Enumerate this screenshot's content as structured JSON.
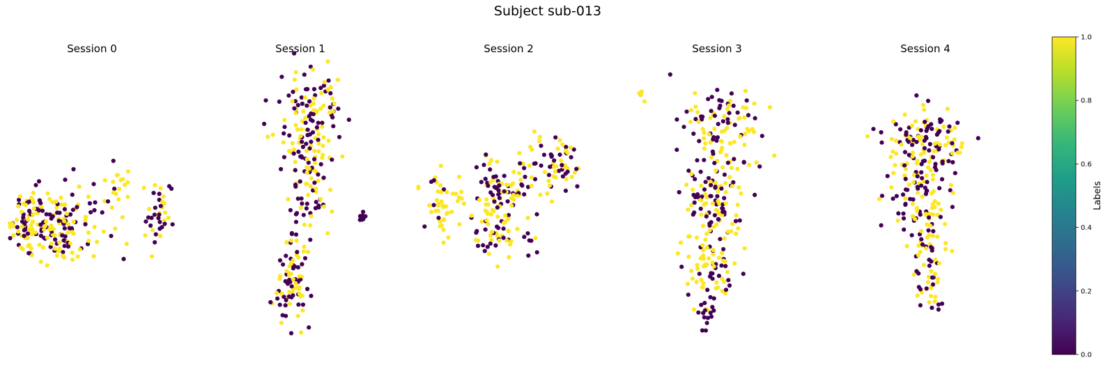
{
  "figure": {
    "title": "Subject sub-013"
  },
  "chart_data": {
    "type": "scatter",
    "colormap": "viridis",
    "marker_colors": {
      "label_0": "#440154",
      "label_1": "#fde725"
    },
    "panels": [
      {
        "title": "Session 0",
        "xlim": [
          0,
          10
        ],
        "ylim": [
          0,
          10
        ],
        "clusters": [
          {
            "cx": 3.0,
            "cy": 4.3,
            "rx": 2.9,
            "ry": 1.2,
            "n": 170,
            "label1": 0.55
          },
          {
            "cx": 1.5,
            "cy": 4.2,
            "rx": 1.3,
            "ry": 0.9,
            "n": 40,
            "label1": 0.5
          },
          {
            "cx": 6.6,
            "cy": 5.6,
            "rx": 0.9,
            "ry": 0.6,
            "n": 18,
            "label1": 0.85
          },
          {
            "cx": 8.9,
            "cy": 4.6,
            "rx": 0.8,
            "ry": 0.9,
            "n": 38,
            "label1": 0.55
          }
        ]
      },
      {
        "title": "Session 1",
        "xlim": [
          0,
          10
        ],
        "ylim": [
          0,
          10
        ],
        "clusters": [
          {
            "cx": 5.4,
            "cy": 7.6,
            "rx": 1.7,
            "ry": 1.9,
            "n": 150,
            "label1": 0.55
          },
          {
            "cx": 5.6,
            "cy": 5.3,
            "rx": 1.3,
            "ry": 1.0,
            "n": 40,
            "label1": 0.55
          },
          {
            "cx": 4.8,
            "cy": 3.3,
            "rx": 0.7,
            "ry": 1.0,
            "n": 25,
            "label1": 0.5
          },
          {
            "cx": 4.4,
            "cy": 1.9,
            "rx": 1.0,
            "ry": 1.1,
            "n": 65,
            "label1": 0.5
          },
          {
            "cx": 8.7,
            "cy": 4.5,
            "rx": 0.2,
            "ry": 0.2,
            "n": 8,
            "label1": 0.0
          }
        ]
      },
      {
        "title": "Session 2",
        "xlim": [
          0,
          10
        ],
        "ylim": [
          0,
          10
        ],
        "clusters": [
          {
            "cx": 1.2,
            "cy": 4.9,
            "rx": 1.0,
            "ry": 1.0,
            "n": 45,
            "label1": 0.7
          },
          {
            "cx": 4.3,
            "cy": 5.3,
            "rx": 1.6,
            "ry": 1.2,
            "n": 90,
            "label1": 0.45
          },
          {
            "cx": 4.2,
            "cy": 3.8,
            "rx": 1.0,
            "ry": 0.9,
            "n": 40,
            "label1": 0.5
          },
          {
            "cx": 7.7,
            "cy": 6.3,
            "rx": 1.7,
            "ry": 0.9,
            "n": 70,
            "label1": 0.45
          },
          {
            "cx": 6.3,
            "cy": 3.6,
            "rx": 0.3,
            "ry": 0.4,
            "n": 6,
            "label1": 0.3
          }
        ]
      },
      {
        "title": "Session 3",
        "xlim": [
          0,
          10
        ],
        "ylim": [
          0,
          10
        ],
        "clusters": [
          {
            "cx": 5.4,
            "cy": 7.8,
            "rx": 2.0,
            "ry": 1.5,
            "n": 110,
            "label1": 0.5
          },
          {
            "cx": 4.9,
            "cy": 5.1,
            "rx": 1.7,
            "ry": 1.5,
            "n": 110,
            "label1": 0.5
          },
          {
            "cx": 4.7,
            "cy": 2.8,
            "rx": 1.4,
            "ry": 1.0,
            "n": 70,
            "label1": 0.55
          },
          {
            "cx": 4.3,
            "cy": 1.2,
            "rx": 0.5,
            "ry": 0.6,
            "n": 18,
            "label1": 0.3
          },
          {
            "cx": 0.5,
            "cy": 8.8,
            "rx": 0.3,
            "ry": 0.3,
            "n": 5,
            "label1": 0.8
          }
        ]
      },
      {
        "title": "Session 4",
        "xlim": [
          0,
          10
        ],
        "ylim": [
          0,
          10
        ],
        "clusters": [
          {
            "cx": 4.8,
            "cy": 7.1,
            "rx": 2.1,
            "ry": 1.1,
            "n": 130,
            "label1": 0.45
          },
          {
            "cx": 4.8,
            "cy": 5.1,
            "rx": 1.8,
            "ry": 1.3,
            "n": 80,
            "label1": 0.6
          },
          {
            "cx": 5.0,
            "cy": 3.6,
            "rx": 1.0,
            "ry": 0.8,
            "n": 35,
            "label1": 0.55
          },
          {
            "cx": 5.2,
            "cy": 2.2,
            "rx": 0.8,
            "ry": 0.9,
            "n": 35,
            "label1": 0.6
          }
        ]
      }
    ],
    "colorbar": {
      "label": "Labels",
      "range": [
        0.0,
        1.0
      ],
      "ticks": [
        "0.0",
        "0.2",
        "0.4",
        "0.6",
        "0.8",
        "1.0"
      ],
      "stops": [
        "#440154",
        "#482777",
        "#3e4a89",
        "#31688e",
        "#26828e",
        "#1f9e89",
        "#35b779",
        "#6ece58",
        "#b5de2b",
        "#fde725"
      ]
    }
  }
}
